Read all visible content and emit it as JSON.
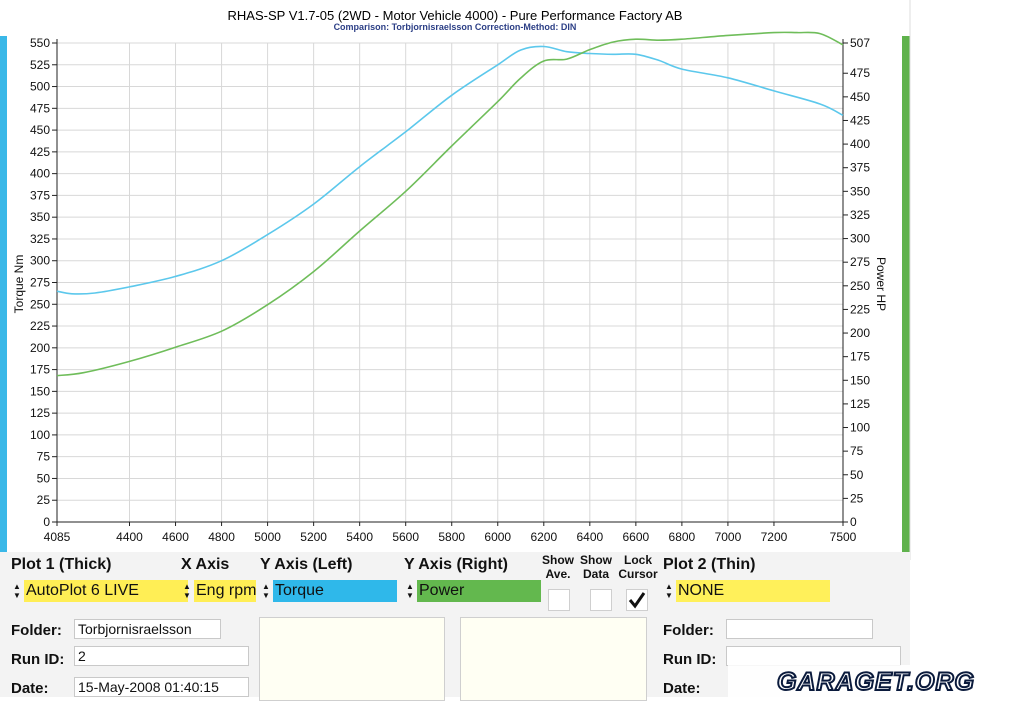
{
  "app": {
    "title": "RHAS-SP V1.7-05   (2WD - Motor Vehicle 4000) - Pure Performance Factory AB",
    "subtitle": "Comparison: Torbjornisraelsson    Correction-Method: DIN"
  },
  "colors": {
    "torque": "#5cc8ec",
    "power": "#6fbd5a",
    "left_bar": "#3ab8e8",
    "right_bar": "#5fb24c",
    "plot1_bg": "#ffee55",
    "yleft_bg": "#2fb8ea",
    "yright_bg": "#63b84e",
    "plot2_bg": "#fff05a",
    "panel_bg": "#fffff3",
    "controls_bg": "#f3f3f3"
  },
  "chart_data": {
    "type": "line",
    "ylabel_left": "Torque Nm",
    "ylabel_right": "Power HP",
    "x_ticks": [
      "4085",
      "4400",
      "4600",
      "4800",
      "5000",
      "5200",
      "5400",
      "5600",
      "5800",
      "6000",
      "6200",
      "6400",
      "6600",
      "6800",
      "7000",
      "7200",
      "7500"
    ],
    "x_tick_values": [
      4085,
      4400,
      4600,
      4800,
      5000,
      5200,
      5400,
      5600,
      5800,
      6000,
      6200,
      6400,
      6600,
      6800,
      7000,
      7200,
      7500
    ],
    "xlim": [
      4085,
      7500
    ],
    "left_ticks": [
      "550",
      "525",
      "500",
      "475",
      "450",
      "425",
      "400",
      "375",
      "350",
      "325",
      "300",
      "275",
      "250",
      "225",
      "200",
      "175",
      "150",
      "125",
      "100",
      "75",
      "50",
      "25",
      "0"
    ],
    "left_tick_values": [
      550,
      525,
      500,
      475,
      450,
      425,
      400,
      375,
      350,
      325,
      300,
      275,
      250,
      225,
      200,
      175,
      150,
      125,
      100,
      75,
      50,
      25,
      0
    ],
    "ylim_left": [
      0,
      550
    ],
    "right_ticks": [
      "507",
      "475",
      "450",
      "425",
      "400",
      "375",
      "350",
      "325",
      "300",
      "275",
      "250",
      "225",
      "200",
      "175",
      "150",
      "125",
      "100",
      "75",
      "50",
      "25",
      "0"
    ],
    "right_tick_values": [
      507,
      475,
      450,
      425,
      400,
      375,
      350,
      325,
      300,
      275,
      250,
      225,
      200,
      175,
      150,
      125,
      100,
      75,
      50,
      25,
      0
    ],
    "ylim_right": [
      0,
      507
    ],
    "grid": true,
    "series": [
      {
        "name": "Torque",
        "axis": "left",
        "x": [
          4085,
          4150,
          4250,
          4400,
          4600,
          4800,
          5000,
          5200,
          5400,
          5600,
          5800,
          6000,
          6100,
          6200,
          6300,
          6400,
          6500,
          6600,
          6700,
          6800,
          7000,
          7200,
          7400,
          7500
        ],
        "y": [
          265,
          262,
          263,
          270,
          282,
          300,
          330,
          365,
          408,
          448,
          490,
          525,
          542,
          546,
          540,
          538,
          537,
          537,
          530,
          520,
          510,
          495,
          480,
          467
        ]
      },
      {
        "name": "Power",
        "axis": "right",
        "x": [
          4085,
          4200,
          4400,
          4600,
          4800,
          5000,
          5200,
          5400,
          5600,
          5800,
          6000,
          6100,
          6200,
          6300,
          6400,
          6500,
          6600,
          6700,
          6800,
          7000,
          7200,
          7300,
          7400,
          7500
        ],
        "y": [
          155,
          158,
          170,
          185,
          202,
          230,
          265,
          308,
          350,
          398,
          445,
          470,
          488,
          490,
          500,
          508,
          511,
          510,
          511,
          515,
          518,
          518,
          517,
          505
        ]
      }
    ]
  },
  "controls": {
    "plot1": {
      "label": "Plot 1 (Thick)",
      "value": "AutoPlot 6 LIVE"
    },
    "xaxis": {
      "label": "X Axis",
      "value": "Eng rpm"
    },
    "yleft": {
      "label": "Y Axis (Left)",
      "value": "Torque"
    },
    "yright": {
      "label": "Y Axis (Right)",
      "value": "Power"
    },
    "show_ave": {
      "label": "Show Ave.",
      "checked": false
    },
    "show_data": {
      "label": "Show Data",
      "checked": false
    },
    "lock_cursor": {
      "label": "Lock Cursor",
      "checked": true
    },
    "plot2": {
      "label": "Plot 2 (Thin)",
      "value": "NONE"
    }
  },
  "run1": {
    "folder_label": "Folder:",
    "folder_value": "Torbjornisraelsson",
    "runid_label": "Run ID:",
    "runid_value": "2",
    "date_label": "Date:",
    "date_value": "15-May-2008  01:40:15"
  },
  "run2": {
    "folder_label": "Folder:",
    "folder_value": "",
    "runid_label": "Run ID:",
    "runid_value": "",
    "date_label": "Date:",
    "date_value": ""
  },
  "watermark": "GARAGET.ORG"
}
